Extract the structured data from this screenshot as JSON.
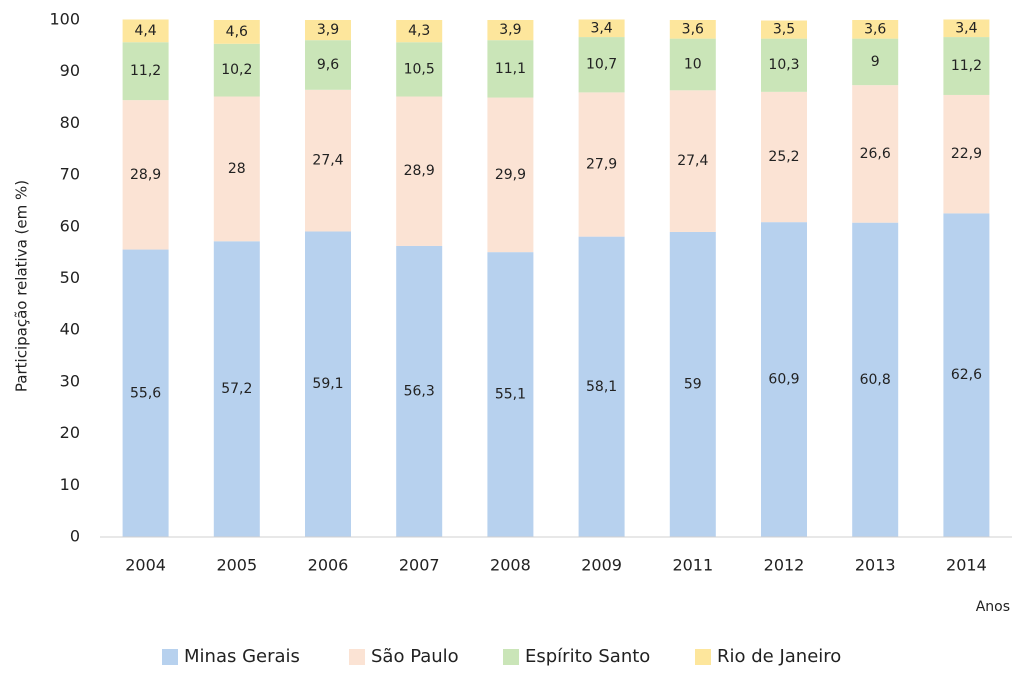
{
  "chart_data": {
    "type": "stacked_bar",
    "y_label": "Participação relativa (em %)",
    "x_label": "Anos",
    "categories": [
      "2004",
      "2005",
      "2006",
      "2007",
      "2008",
      "2009",
      "2011",
      "2012",
      "2013",
      "2014"
    ],
    "series": [
      {
        "name": "Minas Gerais",
        "color": "#b7d1ee",
        "values": [
          55.6,
          57.2,
          59.1,
          56.3,
          55.1,
          58.1,
          59,
          60.9,
          60.8,
          62.6
        ],
        "value_labels": [
          "55,6",
          "57,2",
          "59,1",
          "56,3",
          "55,1",
          "58,1",
          "59",
          "60,9",
          "60,8",
          "62,6"
        ]
      },
      {
        "name": "São Paulo",
        "color": "#fbe3d4",
        "values": [
          28.9,
          28,
          27.4,
          28.9,
          29.9,
          27.9,
          27.4,
          25.2,
          26.6,
          22.9
        ],
        "value_labels": [
          "28,9",
          "28",
          "27,4",
          "28,9",
          "29,9",
          "27,9",
          "27,4",
          "25,2",
          "26,6",
          "22,9"
        ]
      },
      {
        "name": "Espírito Santo",
        "color": "#cae5b8",
        "values": [
          11.2,
          10.2,
          9.6,
          10.5,
          11.1,
          10.7,
          10,
          10.3,
          9,
          11.2
        ],
        "value_labels": [
          "11,2",
          "10,2",
          "9,6",
          "10,5",
          "11,1",
          "10,7",
          "10",
          "10,3",
          "9",
          "11,2"
        ]
      },
      {
        "name": "Rio de Janeiro",
        "color": "#fde69c",
        "values": [
          4.4,
          4.6,
          3.9,
          4.3,
          3.9,
          3.4,
          3.6,
          3.5,
          3.6,
          3.4
        ],
        "value_labels": [
          "4,4",
          "4,6",
          "3,9",
          "4,3",
          "3,9",
          "3,4",
          "3,6",
          "3,5",
          "3,6",
          "3,4"
        ]
      }
    ],
    "ylim": [
      0,
      100
    ],
    "yticks": [
      0,
      10,
      20,
      30,
      40,
      50,
      60,
      70,
      80,
      90,
      100
    ],
    "grid": false,
    "legend": "bottom"
  }
}
